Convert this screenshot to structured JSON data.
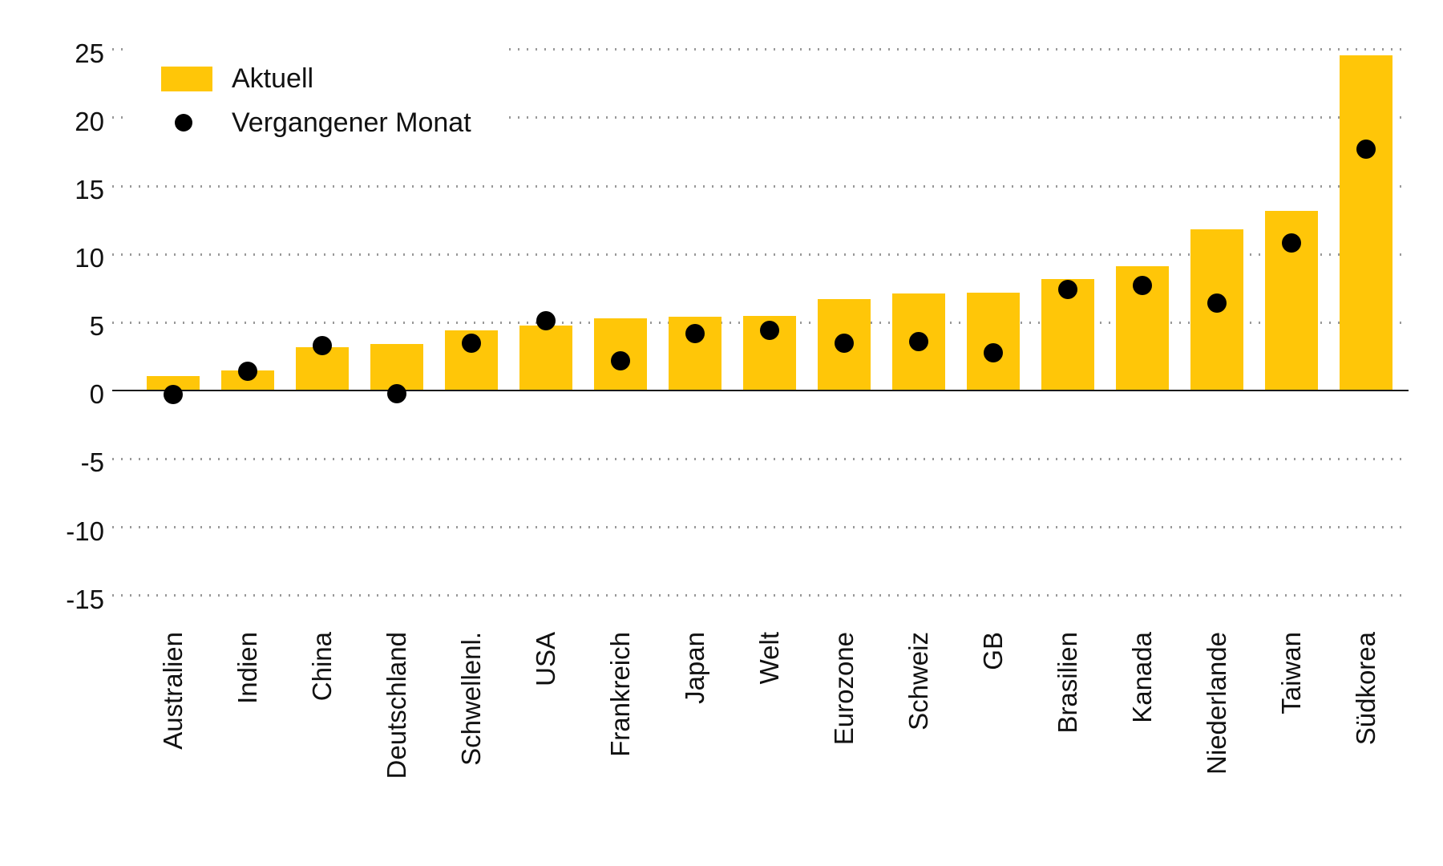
{
  "chart_data": {
    "type": "bar",
    "title": "",
    "xlabel": "",
    "ylabel": "",
    "categories": [
      "Australien",
      "Indien",
      "China",
      "Deutschland",
      "Schwellenl.",
      "USA",
      "Frankreich",
      "Japan",
      "Welt",
      "Eurozone",
      "Schweiz",
      "GB",
      "Brasilien",
      "Kanada",
      "Niederlande",
      "Taiwan",
      "Südkorea"
    ],
    "series": [
      {
        "name": "Aktuell",
        "style": "bar",
        "color": "#FFC608",
        "values": [
          1.1,
          1.5,
          3.2,
          3.4,
          4.4,
          4.8,
          5.3,
          5.4,
          5.5,
          6.7,
          7.1,
          7.2,
          8.2,
          9.1,
          11.8,
          13.2,
          24.6
        ]
      },
      {
        "name": "Vergangener Monat",
        "style": "dot",
        "color": "#000000",
        "values": [
          -0.3,
          1.4,
          3.3,
          -0.2,
          3.5,
          5.1,
          2.2,
          4.2,
          4.4,
          3.5,
          3.6,
          2.8,
          7.4,
          7.7,
          6.4,
          10.8,
          17.7
        ]
      }
    ],
    "yticks": [
      25,
      20,
      15,
      10,
      5,
      0,
      -5,
      -10,
      -15
    ],
    "ylim": [
      -17.5,
      26
    ],
    "grid": "horizontal-dotted",
    "zero_line": true,
    "legend_position": "upper-left"
  },
  "colors": {
    "bar_yellow": "#FFC608",
    "dot_black": "#000000",
    "grid_grey": "#999999",
    "zero_axis": "#1a1a1a",
    "text": "#111111",
    "background": "#ffffff"
  }
}
